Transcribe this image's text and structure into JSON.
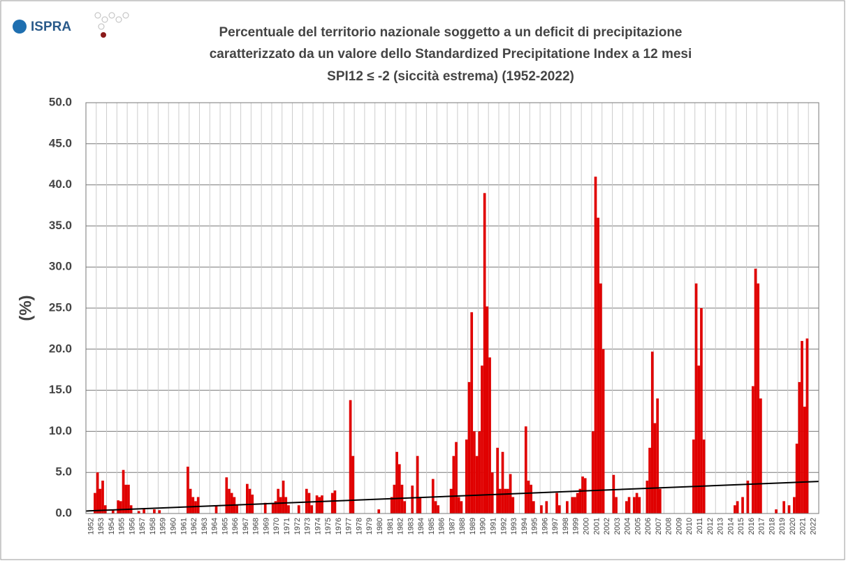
{
  "logo": {
    "text": "ISPRA"
  },
  "chart_data": {
    "type": "bar",
    "title": [
      "Percentuale del territorio nazionale soggetto a un deficit di precipitazione",
      "caratterizzato da un valore dello  Standardized Precipitatione Index a 12 mesi",
      "SPI12 ≤ -2 (siccità estrema) (1952-2022)"
    ],
    "y_label": "(%)",
    "color": "#e00000",
    "bar_width": 0.25,
    "grid": true,
    "xlim": [
      1952,
      2023
    ],
    "xticks": [
      1952,
      1953,
      1954,
      1955,
      1956,
      1957,
      1958,
      1959,
      1960,
      1961,
      1962,
      1963,
      1964,
      1965,
      1966,
      1967,
      1968,
      1969,
      1970,
      1971,
      1972,
      1973,
      1974,
      1975,
      1976,
      1977,
      1978,
      1979,
      1980,
      1981,
      1982,
      1983,
      1984,
      1985,
      1986,
      1987,
      1988,
      1989,
      1990,
      1991,
      1992,
      1993,
      1994,
      1995,
      1996,
      1997,
      1998,
      1999,
      2000,
      2001,
      2002,
      2003,
      2004,
      2005,
      2006,
      2007,
      2008,
      2009,
      2010,
      2011,
      2012,
      2013,
      2014,
      2015,
      2016,
      2017,
      2018,
      2019,
      2020,
      2021,
      2022
    ],
    "ylim": [
      0,
      50
    ],
    "yticks": [
      {
        "value": 0,
        "label": "0.0"
      },
      {
        "value": 5,
        "label": "5.0"
      },
      {
        "value": 10,
        "label": "10.0"
      },
      {
        "value": 15,
        "label": "15.0"
      },
      {
        "value": 20,
        "label": "20.0"
      },
      {
        "value": 25,
        "label": "25.0"
      },
      {
        "value": 30,
        "label": "30.0"
      },
      {
        "value": 35,
        "label": "35.0"
      },
      {
        "value": 40,
        "label": "40.0"
      },
      {
        "value": 45,
        "label": "45.0"
      },
      {
        "value": 50,
        "label": "50.0"
      }
    ],
    "x": [
      1952.75,
      1953.0,
      1953.25,
      1953.5,
      1953.75,
      1954.5,
      1955.0,
      1955.25,
      1955.5,
      1955.75,
      1956.0,
      1956.25,
      1957.0,
      1957.5,
      1958.5,
      1959.0,
      1961.75,
      1962.0,
      1962.25,
      1962.5,
      1962.75,
      1964.5,
      1965.5,
      1965.75,
      1966.0,
      1966.25,
      1966.5,
      1967.5,
      1967.75,
      1968.0,
      1969.25,
      1970.0,
      1970.25,
      1970.5,
      1970.75,
      1971.0,
      1971.25,
      1971.5,
      1972.5,
      1973.25,
      1973.5,
      1973.75,
      1974.25,
      1974.5,
      1974.75,
      1975.75,
      1976.0,
      1977.5,
      1977.75,
      1980.25,
      1981.5,
      1981.75,
      1982.0,
      1982.25,
      1982.5,
      1982.75,
      1983.5,
      1984.0,
      1984.25,
      1985.5,
      1985.75,
      1986.0,
      1987.25,
      1987.5,
      1987.75,
      1988.0,
      1988.25,
      1988.75,
      1989.0,
      1989.25,
      1989.5,
      1989.75,
      1990.0,
      1990.25,
      1990.5,
      1990.75,
      1991.0,
      1991.25,
      1991.75,
      1992.0,
      1992.25,
      1992.5,
      1992.75,
      1993.0,
      1993.25,
      1994.5,
      1994.75,
      1995.0,
      1995.25,
      1996.0,
      1996.5,
      1997.5,
      1997.75,
      1998.5,
      1999.0,
      1999.25,
      1999.5,
      1999.75,
      2000.0,
      2000.25,
      2001.0,
      2001.25,
      2001.5,
      2001.75,
      2002.0,
      2003.0,
      2003.25,
      2004.25,
      2004.5,
      2005.0,
      2005.25,
      2005.5,
      2006.25,
      2006.5,
      2006.75,
      2007.0,
      2007.25,
      2007.5,
      2010.75,
      2011.0,
      2011.25,
      2011.5,
      2011.75,
      2014.75,
      2015.0,
      2015.5,
      2016.0,
      2016.5,
      2016.75,
      2017.0,
      2017.25,
      2018.75,
      2019.5,
      2020.0,
      2020.5,
      2020.75,
      2021.0,
      2021.25,
      2021.5,
      2021.75
    ],
    "values": [
      2.5,
      5.0,
      3,
      4,
      1,
      0.5,
      1.6,
      1.5,
      5.3,
      3.5,
      3.5,
      1,
      0.3,
      0.5,
      0.5,
      0.4,
      5.7,
      3,
      2,
      1.5,
      2,
      1,
      4.4,
      3,
      2.5,
      2,
      1,
      3.6,
      3,
      2.3,
      1.3,
      1.2,
      1.5,
      3,
      2,
      4,
      2,
      1,
      1,
      3,
      2.5,
      1,
      2.2,
      2,
      2.2,
      2.5,
      2.8,
      13.8,
      7,
      0.5,
      2,
      3.5,
      7.5,
      6,
      3.5,
      1.5,
      3.4,
      7,
      2,
      4.2,
      1.5,
      1,
      3,
      7,
      8.7,
      2,
      1.5,
      9,
      16,
      24.5,
      10,
      7,
      10,
      18,
      39,
      25.2,
      19,
      5,
      8,
      3,
      7.5,
      3,
      3,
      4.8,
      2,
      10.6,
      4,
      3.5,
      1.5,
      1,
      1.5,
      2.5,
      1,
      1.5,
      2,
      2,
      2.5,
      3,
      4.5,
      4.3,
      10,
      41,
      36,
      28,
      20,
      4.7,
      2,
      1.5,
      2,
      2,
      2.5,
      2,
      4,
      8,
      19.7,
      11,
      14,
      3,
      9,
      28,
      18,
      25,
      9,
      1,
      1.5,
      2,
      4,
      15.5,
      29.8,
      28,
      14,
      0.5,
      1.5,
      1,
      2,
      8.5,
      16,
      21,
      13,
      21.3
    ],
    "trend": {
      "color": "#000000",
      "x": [
        1952,
        2023
      ],
      "values": [
        0.3,
        3.9
      ]
    }
  }
}
